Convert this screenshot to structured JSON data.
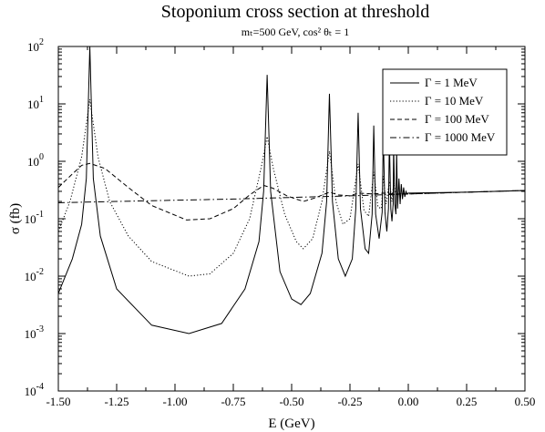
{
  "chart_data": {
    "type": "line",
    "title": "Stoponium cross section at threshold",
    "subtitle": "mₜ=500 GeV, cos² θₜ = 1",
    "xlabel": "E (GeV)",
    "ylabel": "σ (fb)",
    "xlim": [
      -1.5,
      0.5
    ],
    "ylim": [
      0.0001,
      100
    ],
    "yscale": "log",
    "grid": false,
    "legend_position": "top-right",
    "x_ticks": [
      "-1.50",
      "-1.25",
      "-1.00",
      "-0.75",
      "-0.50",
      "-0.25",
      "0.00",
      "0.25",
      "0.50"
    ],
    "y_ticks": [
      {
        "base": "10",
        "exp": "-4"
      },
      {
        "base": "10",
        "exp": "-3"
      },
      {
        "base": "10",
        "exp": "-2"
      },
      {
        "base": "10",
        "exp": "-1"
      },
      {
        "base": "10",
        "exp": "0"
      },
      {
        "base": "10",
        "exp": "1"
      },
      {
        "base": "10",
        "exp": "2"
      }
    ],
    "resonance_energies": [
      -1.365,
      -0.605,
      -0.338,
      -0.215,
      -0.148,
      -0.107,
      -0.081,
      -0.063,
      -0.05
    ],
    "series": [
      {
        "name": "Γ = 1 MeV",
        "style": "solid",
        "points": [
          [
            -1.5,
            0.005
          ],
          [
            -1.44,
            0.02
          ],
          [
            -1.4,
            0.08
          ],
          [
            -1.38,
            0.5
          ],
          [
            -1.365,
            100
          ],
          [
            -1.35,
            0.5
          ],
          [
            -1.32,
            0.05
          ],
          [
            -1.25,
            0.006
          ],
          [
            -1.1,
            0.0014
          ],
          [
            -0.94,
            0.001
          ],
          [
            -0.8,
            0.0015
          ],
          [
            -0.7,
            0.006
          ],
          [
            -0.64,
            0.04
          ],
          [
            -0.62,
            0.3
          ],
          [
            -0.605,
            32
          ],
          [
            -0.59,
            0.3
          ],
          [
            -0.55,
            0.012
          ],
          [
            -0.5,
            0.004
          ],
          [
            -0.46,
            0.0032
          ],
          [
            -0.42,
            0.005
          ],
          [
            -0.37,
            0.025
          ],
          [
            -0.35,
            0.2
          ],
          [
            -0.338,
            15
          ],
          [
            -0.325,
            0.2
          ],
          [
            -0.3,
            0.02
          ],
          [
            -0.27,
            0.01
          ],
          [
            -0.24,
            0.02
          ],
          [
            -0.225,
            0.15
          ],
          [
            -0.215,
            7
          ],
          [
            -0.205,
            0.15
          ],
          [
            -0.185,
            0.03
          ],
          [
            -0.17,
            0.025
          ],
          [
            -0.155,
            0.12
          ],
          [
            -0.148,
            4.2
          ],
          [
            -0.14,
            0.12
          ],
          [
            -0.125,
            0.045
          ],
          [
            -0.112,
            0.13
          ],
          [
            -0.107,
            3
          ],
          [
            -0.1,
            0.13
          ],
          [
            -0.092,
            0.06
          ],
          [
            -0.085,
            0.15
          ],
          [
            -0.081,
            2.4
          ],
          [
            -0.075,
            0.15
          ],
          [
            -0.07,
            0.09
          ],
          [
            -0.065,
            0.18
          ],
          [
            -0.063,
            1.9
          ],
          [
            -0.058,
            0.18
          ],
          [
            -0.053,
            0.12
          ],
          [
            -0.05,
            1.6
          ],
          [
            -0.046,
            0.15
          ],
          [
            -0.04,
            0.5
          ],
          [
            -0.035,
            0.18
          ],
          [
            -0.03,
            0.4
          ],
          [
            -0.025,
            0.22
          ],
          [
            -0.02,
            0.35
          ],
          [
            -0.015,
            0.24
          ],
          [
            -0.01,
            0.3
          ],
          [
            -0.005,
            0.27
          ],
          [
            0,
            0.28
          ],
          [
            0.25,
            0.29
          ],
          [
            0.5,
            0.31
          ]
        ]
      },
      {
        "name": "Γ = 10 MeV",
        "style": "dotted",
        "points": [
          [
            -1.5,
            0.06
          ],
          [
            -1.45,
            0.2
          ],
          [
            -1.4,
            1.2
          ],
          [
            -1.365,
            12
          ],
          [
            -1.33,
            1.2
          ],
          [
            -1.28,
            0.2
          ],
          [
            -1.2,
            0.05
          ],
          [
            -1.1,
            0.018
          ],
          [
            -0.94,
            0.01
          ],
          [
            -0.85,
            0.011
          ],
          [
            -0.75,
            0.025
          ],
          [
            -0.68,
            0.1
          ],
          [
            -0.63,
            0.8
          ],
          [
            -0.605,
            2.7
          ],
          [
            -0.58,
            0.8
          ],
          [
            -0.53,
            0.12
          ],
          [
            -0.48,
            0.04
          ],
          [
            -0.45,
            0.03
          ],
          [
            -0.41,
            0.045
          ],
          [
            -0.37,
            0.2
          ],
          [
            -0.338,
            1.5
          ],
          [
            -0.31,
            0.2
          ],
          [
            -0.28,
            0.08
          ],
          [
            -0.25,
            0.1
          ],
          [
            -0.215,
            0.9
          ],
          [
            -0.19,
            0.14
          ],
          [
            -0.17,
            0.11
          ],
          [
            -0.148,
            0.65
          ],
          [
            -0.13,
            0.16
          ],
          [
            -0.115,
            0.15
          ],
          [
            -0.107,
            0.55
          ],
          [
            -0.095,
            0.18
          ],
          [
            -0.081,
            0.45
          ],
          [
            -0.07,
            0.2
          ],
          [
            -0.063,
            0.42
          ],
          [
            -0.05,
            0.25
          ],
          [
            -0.03,
            0.28
          ],
          [
            0,
            0.27
          ],
          [
            0.25,
            0.29
          ],
          [
            0.5,
            0.31
          ]
        ]
      },
      {
        "name": "Γ = 100 MeV",
        "style": "dashed",
        "points": [
          [
            -1.5,
            0.35
          ],
          [
            -1.45,
            0.55
          ],
          [
            -1.4,
            0.85
          ],
          [
            -1.365,
            0.92
          ],
          [
            -1.3,
            0.75
          ],
          [
            -1.2,
            0.35
          ],
          [
            -1.1,
            0.17
          ],
          [
            -0.95,
            0.095
          ],
          [
            -0.85,
            0.1
          ],
          [
            -0.75,
            0.15
          ],
          [
            -0.68,
            0.26
          ],
          [
            -0.62,
            0.38
          ],
          [
            -0.58,
            0.34
          ],
          [
            -0.52,
            0.25
          ],
          [
            -0.45,
            0.2
          ],
          [
            -0.4,
            0.23
          ],
          [
            -0.338,
            0.29
          ],
          [
            -0.3,
            0.26
          ],
          [
            -0.25,
            0.25
          ],
          [
            -0.215,
            0.28
          ],
          [
            -0.15,
            0.27
          ],
          [
            -0.1,
            0.28
          ],
          [
            -0.05,
            0.27
          ],
          [
            0,
            0.27
          ],
          [
            0.25,
            0.29
          ],
          [
            0.5,
            0.31
          ]
        ]
      },
      {
        "name": "Γ = 1000 MeV",
        "style": "dashdot",
        "points": [
          [
            -1.5,
            0.19
          ],
          [
            -1.25,
            0.2
          ],
          [
            -1.0,
            0.21
          ],
          [
            -0.75,
            0.22
          ],
          [
            -0.5,
            0.235
          ],
          [
            -0.25,
            0.25
          ],
          [
            0,
            0.27
          ],
          [
            0.25,
            0.29
          ],
          [
            0.5,
            0.31
          ]
        ]
      }
    ]
  }
}
